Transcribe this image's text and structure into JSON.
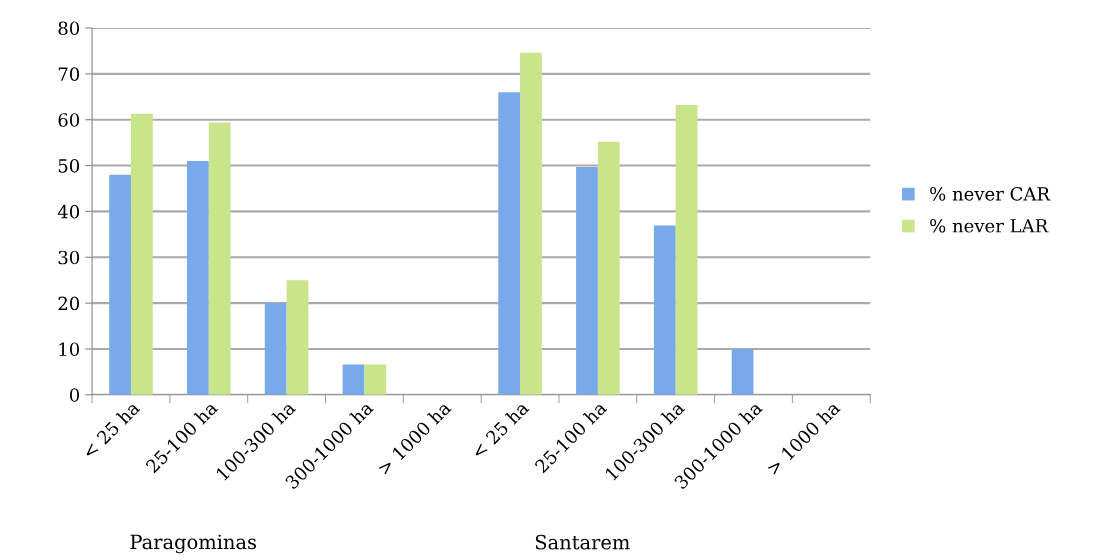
{
  "chart_data": {
    "type": "bar",
    "categories": [
      "< 25 ha",
      "25-100 ha",
      "100-300 ha",
      "300-1000 ha",
      "> 1000 ha",
      "< 25 ha",
      "25-100 ha",
      "100-300 ha",
      "300-1000 ha",
      "> 1000 ha"
    ],
    "series": [
      {
        "name": "% never CAR",
        "color": "#78aaea",
        "values": [
          48,
          51,
          20,
          6.6,
          0,
          66,
          49.7,
          36.9,
          10,
          0
        ]
      },
      {
        "name": "% never LAR",
        "color": "#c8e58c",
        "values": [
          61.3,
          59.4,
          25,
          6.6,
          0,
          74.6,
          55.2,
          63.2,
          0,
          0
        ]
      }
    ],
    "annotations": [
      "Paragominas",
      "Santarem"
    ],
    "ylim": [
      0,
      80
    ],
    "yticks": [
      0,
      10,
      20,
      30,
      40,
      50,
      60,
      70,
      80
    ],
    "grid": "y",
    "legend": "right"
  }
}
